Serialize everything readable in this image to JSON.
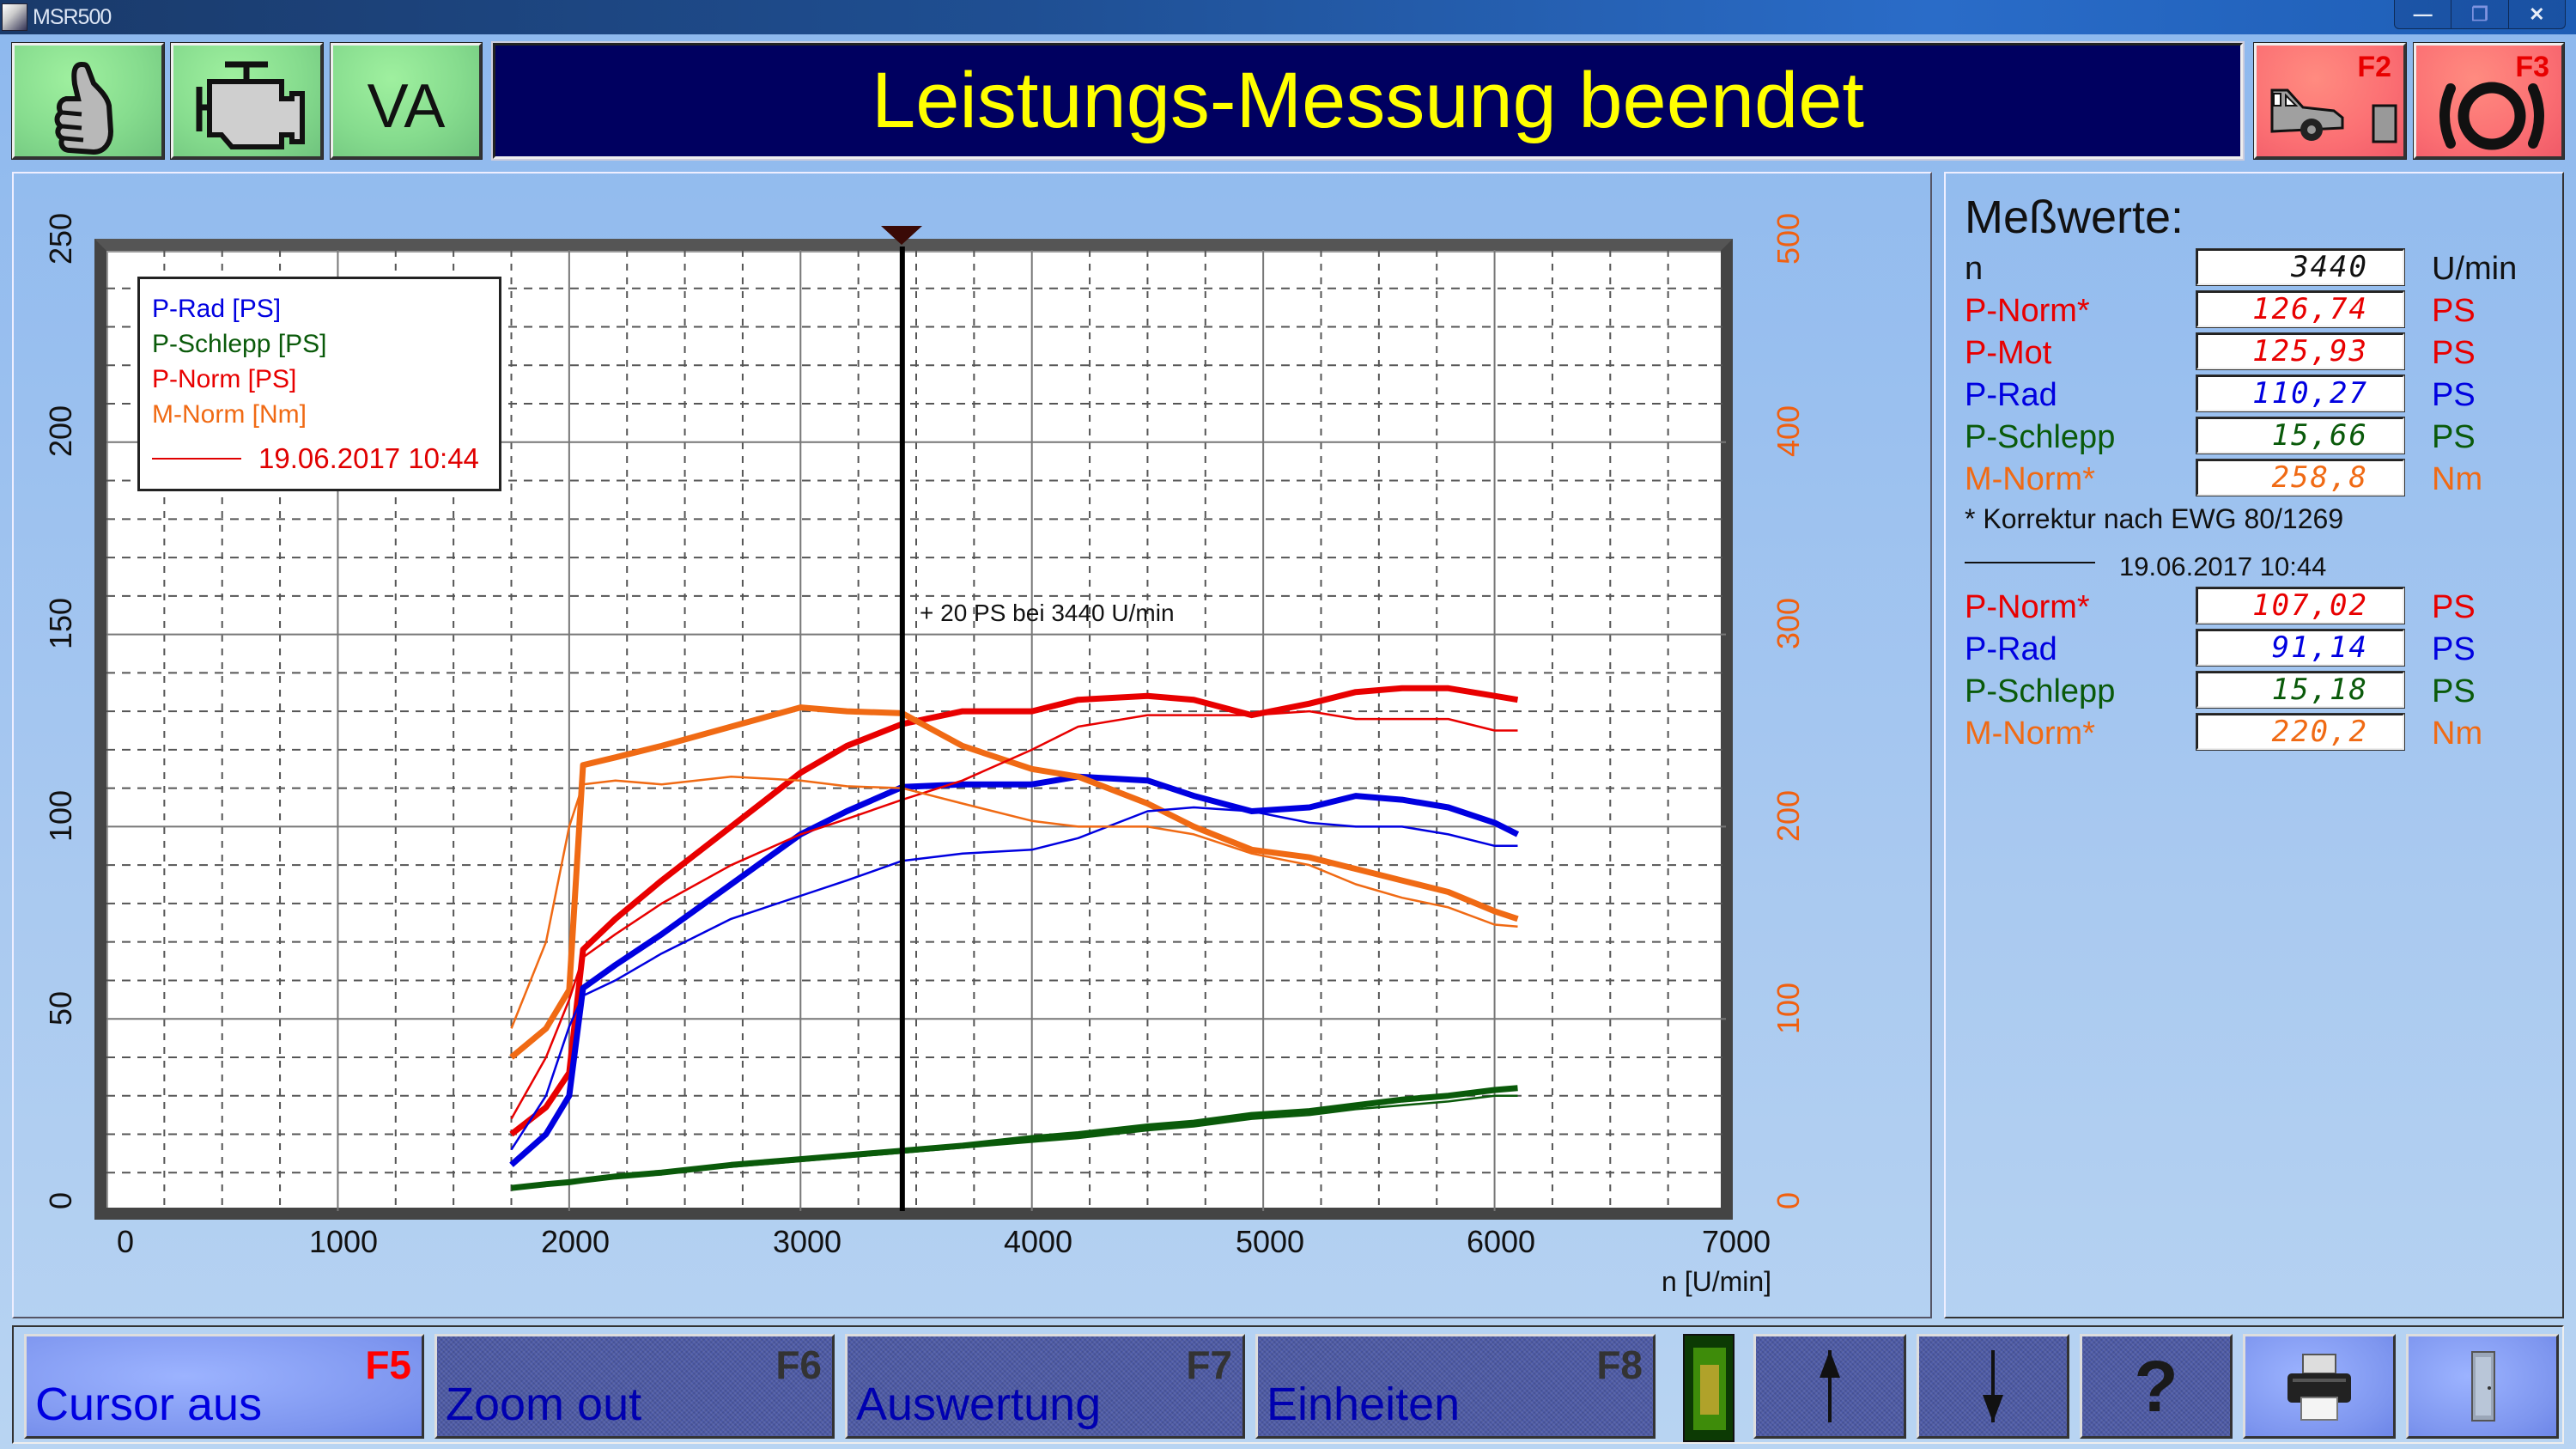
{
  "window": {
    "title": "MSR500",
    "controls": {
      "minimize": "—",
      "restore": "❐",
      "close": "✕"
    }
  },
  "top_buttons": {
    "ok": {
      "icon": "thumbs-up-icon"
    },
    "engine": {
      "icon": "engine-icon"
    },
    "va": {
      "label": "VA"
    },
    "f2": {
      "key": "F2",
      "icon": "car-at-wall-icon"
    },
    "f3": {
      "key": "F3",
      "icon": "brake-warning-icon"
    }
  },
  "headline": "Leistungs-Messung beendet",
  "chart": {
    "legend": {
      "items": [
        {
          "label": "P-Rad [PS]",
          "color": "#0000e0"
        },
        {
          "label": "P-Schlepp [PS]",
          "color": "#0a5a0a"
        },
        {
          "label": "P-Norm [PS]",
          "color": "#e80000"
        },
        {
          "label": "M-Norm [Nm]",
          "color": "#f06a14"
        }
      ],
      "reference_label": "19.06.2017 10:44"
    },
    "cursor_annotation": "+ 20 PS bei 3440 U/min",
    "x_axis_title": "n [U/min]",
    "x_ticks": [
      "0",
      "1000",
      "2000",
      "3000",
      "4000",
      "5000",
      "6000",
      "7000"
    ],
    "y_left_ticks": [
      "0",
      "50",
      "100",
      "150",
      "200",
      "250"
    ],
    "y_right_ticks": [
      "0",
      "100",
      "200",
      "300",
      "400",
      "500"
    ]
  },
  "chart_data": {
    "type": "line",
    "title": "Leistungs-Messung beendet",
    "xlabel": "n [U/min]",
    "ylabel": "PS",
    "ylabel_right": "Nm",
    "xlim": [
      0,
      7000
    ],
    "ylim": [
      0,
      250
    ],
    "ylim_right": [
      0,
      500
    ],
    "grid": true,
    "legend_position": "top-left",
    "cursor": {
      "x": 3440,
      "label": "+ 20 PS bei 3440 U/min"
    },
    "x": [
      1750,
      1900,
      2000,
      2060,
      2200,
      2400,
      2700,
      3000,
      3200,
      3440,
      3700,
      4000,
      4200,
      4500,
      4700,
      4950,
      5200,
      5400,
      5600,
      5800,
      6000,
      6100
    ],
    "series": [
      {
        "name": "P-Norm [PS]",
        "run": "current",
        "axis": "left",
        "color": "#e80000",
        "values": [
          20,
          27,
          36,
          68,
          76,
          86,
          100,
          114,
          121,
          126.7,
          130,
          130,
          133,
          134,
          133,
          129,
          132,
          135,
          136,
          136,
          134,
          133
        ]
      },
      {
        "name": "P-Rad [PS]",
        "run": "current",
        "axis": "left",
        "color": "#0000e0",
        "values": [
          12,
          20,
          30,
          58,
          64,
          72,
          85,
          98,
          104,
          110.3,
          111,
          111,
          113,
          112,
          108,
          104,
          105,
          108,
          107,
          105,
          101,
          98
        ]
      },
      {
        "name": "P-Schlepp [PS]",
        "run": "current",
        "axis": "left",
        "color": "#0a5a0a",
        "values": [
          6,
          7,
          7.5,
          8,
          9,
          10,
          12,
          13.5,
          14.5,
          15.7,
          17,
          19,
          20,
          22,
          23,
          25,
          26,
          27.5,
          29,
          30,
          31.5,
          32
        ]
      },
      {
        "name": "M-Norm [Nm]",
        "run": "current",
        "axis": "right",
        "color": "#f06a14",
        "values": [
          80,
          95,
          115,
          232,
          236,
          242,
          252,
          262,
          260,
          259,
          242,
          230,
          226,
          212,
          200,
          188,
          184,
          178,
          172,
          166,
          156,
          152
        ]
      },
      {
        "name": "P-Norm [PS]",
        "run": "19.06.2017 10:44",
        "axis": "left",
        "color": "#e80000",
        "values": [
          24,
          40,
          55,
          66,
          72,
          80,
          90,
          98,
          102,
          107.0,
          112,
          120,
          126,
          129,
          129,
          129,
          130,
          128,
          128,
          128,
          125,
          125
        ]
      },
      {
        "name": "P-Rad [PS]",
        "run": "19.06.2017 10:44",
        "axis": "left",
        "color": "#0000e0",
        "values": [
          16,
          30,
          48,
          56,
          60,
          67,
          76,
          82,
          86,
          91.1,
          93,
          94,
          97,
          104,
          105,
          104,
          101,
          100,
          100,
          98,
          95,
          95
        ]
      },
      {
        "name": "P-Schlepp [PS]",
        "run": "19.06.2017 10:44",
        "axis": "left",
        "color": "#0a5a0a",
        "values": [
          6,
          7,
          7.5,
          8,
          9,
          10,
          11.5,
          13,
          14,
          15.2,
          16.5,
          18,
          19,
          21,
          22,
          24,
          25,
          26.5,
          27.5,
          28.5,
          30,
          30
        ]
      },
      {
        "name": "M-Norm [Nm]",
        "run": "19.06.2017 10:44",
        "axis": "right",
        "color": "#f06a14",
        "values": [
          95,
          140,
          200,
          222,
          224,
          222,
          226,
          224,
          221,
          220,
          212,
          203,
          200,
          200,
          196,
          186,
          180,
          170,
          163,
          158,
          149,
          148
        ]
      }
    ]
  },
  "measurements": {
    "title": "Meßwerte:",
    "current": [
      {
        "label": "n",
        "value": "3440",
        "unit": "U/min",
        "color": "#111111"
      },
      {
        "label": "P-Norm*",
        "value": "126,74",
        "unit": "PS",
        "color": "#e80000"
      },
      {
        "label": "P-Mot",
        "value": "125,93",
        "unit": "PS",
        "color": "#e80000"
      },
      {
        "label": "P-Rad",
        "value": "110,27",
        "unit": "PS",
        "color": "#0000e0"
      },
      {
        "label": "P-Schlepp",
        "value": "15,66",
        "unit": "PS",
        "color": "#0a5a0a"
      },
      {
        "label": "M-Norm*",
        "value": "258,8",
        "unit": "Nm",
        "color": "#f06a14"
      }
    ],
    "footnote": "* Korrektur nach EWG 80/1269",
    "reference_date": "19.06.2017 10:44",
    "reference": [
      {
        "label": "P-Norm*",
        "value": "107,02",
        "unit": "PS",
        "color": "#e80000"
      },
      {
        "label": "P-Rad",
        "value": "91,14",
        "unit": "PS",
        "color": "#0000e0"
      },
      {
        "label": "P-Schlepp",
        "value": "15,18",
        "unit": "PS",
        "color": "#0a5a0a"
      },
      {
        "label": "M-Norm*",
        "value": "220,2",
        "unit": "Nm",
        "color": "#f06a14"
      }
    ]
  },
  "toolbar": {
    "f5": {
      "key": "F5",
      "label": "Cursor aus"
    },
    "f6": {
      "key": "F6",
      "label": "Zoom out"
    },
    "f7": {
      "key": "F7",
      "label": "Auswertung"
    },
    "f8": {
      "key": "F8",
      "label": "Einheiten"
    },
    "up": {
      "glyph": "↑"
    },
    "down": {
      "glyph": "↓"
    },
    "help": {
      "glyph": "?"
    }
  }
}
